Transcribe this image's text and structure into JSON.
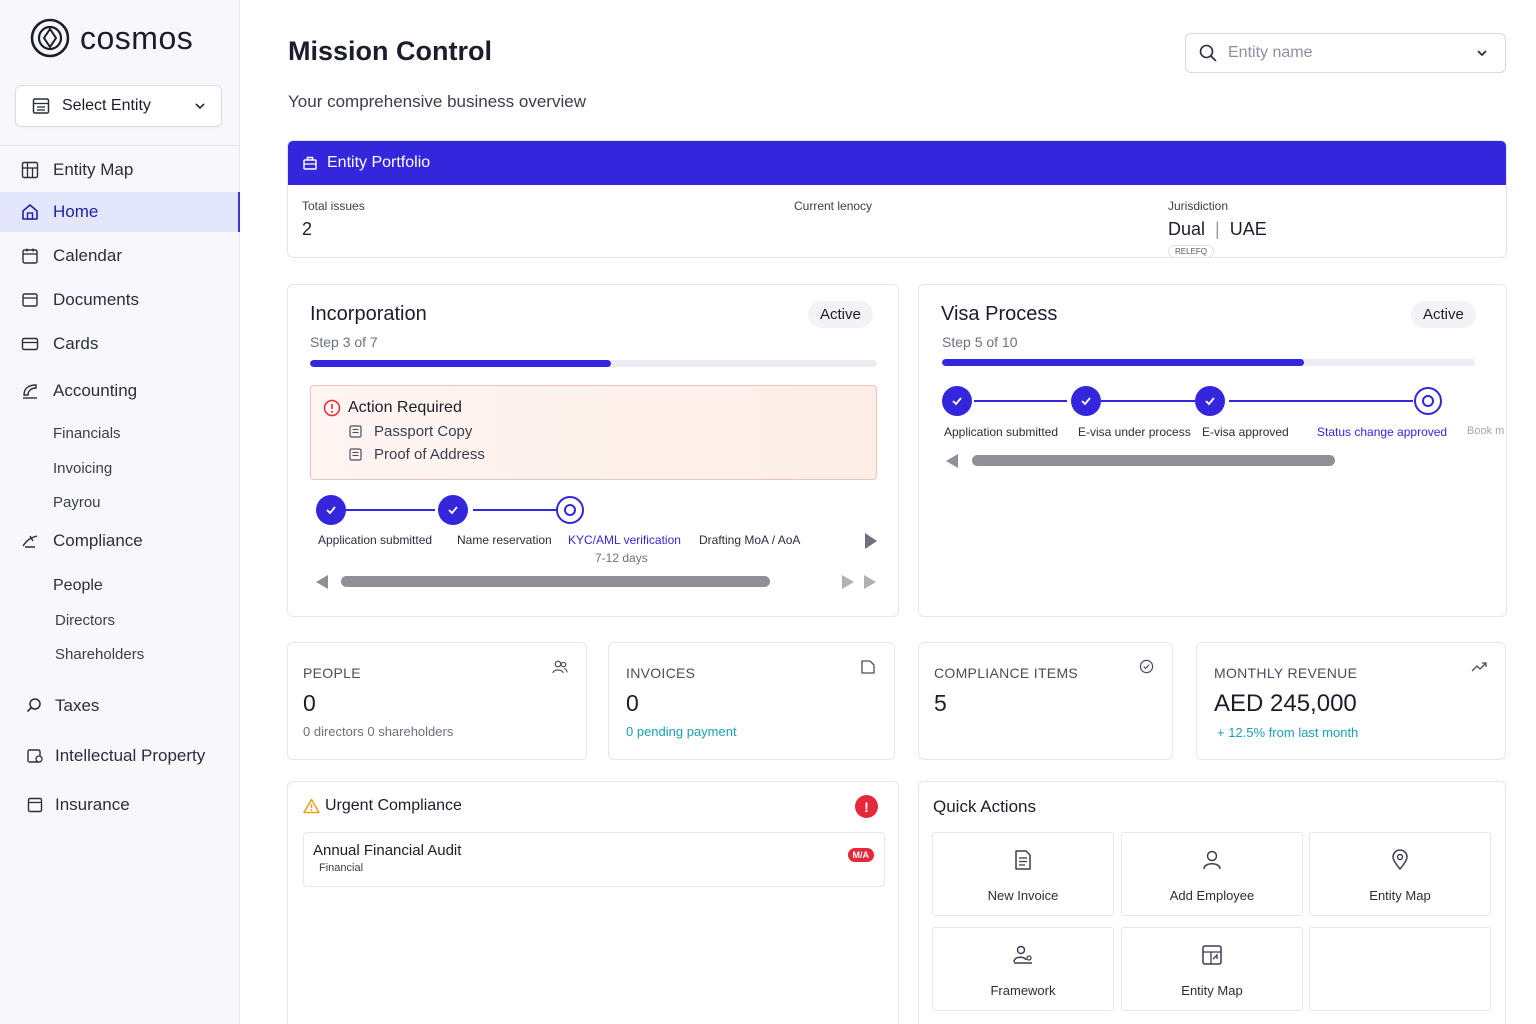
{
  "brand": {
    "name": "cosmos"
  },
  "sidebar": {
    "select_entity": "Select Entity",
    "items": [
      {
        "label": "Entity Map",
        "icon": "grid-icon"
      },
      {
        "label": "Home",
        "icon": "home-icon",
        "active": true
      },
      {
        "label": "Calendar",
        "icon": "calendar-icon"
      },
      {
        "label": "Documents",
        "icon": "folder-icon"
      },
      {
        "label": "Cards",
        "icon": "card-icon"
      },
      {
        "label": "Accounting",
        "icon": "accounting-icon"
      },
      {
        "label": "Compliance",
        "icon": "compliance-icon"
      },
      {
        "label": "Taxes",
        "icon": "search-icon"
      },
      {
        "label": "Intellectual Property",
        "icon": "ip-icon"
      },
      {
        "label": "Insurance",
        "icon": "insurance-icon"
      }
    ],
    "accounting_sub": [
      "Financials",
      "Invoicing",
      "Payrou"
    ],
    "compliance_sub": [
      "People",
      "Directors",
      "Shareholders"
    ]
  },
  "header": {
    "title": "Mission Control",
    "subtitle": "Your comprehensive business overview",
    "search_placeholder": "Entity name"
  },
  "portfolio": {
    "title": "Entity Portfolio",
    "total_issues_label": "Total issues",
    "total_issues_value": "2",
    "current_tenancy_label": "Current lenocy",
    "jurisdiction_label": "Jurisdiction",
    "jurisdiction_value": "Dual",
    "jurisdiction_country": "UAE",
    "jurisdiction_badge": "RELEFQ"
  },
  "incorporation": {
    "title": "Incorporation",
    "status": "Active",
    "step_text": "Step 3 of 7",
    "progress": 0.53,
    "action_title": "Action Required",
    "action_items": [
      "Passport Copy",
      "Proof of Address"
    ],
    "steps": [
      "Application submitted",
      "Name reservation",
      "KYC/AML verification",
      "Drafting MoA / AoA"
    ],
    "current_sub": "7-12 days"
  },
  "visa": {
    "title": "Visa Process",
    "status": "Active",
    "step_text": "Step 5 of 10",
    "progress": 0.68,
    "steps": [
      "Application submitted",
      "E-visa under process",
      "E-visa approved",
      "Status change approved",
      "Book m"
    ]
  },
  "stats": {
    "people": {
      "label": "PEOPLE",
      "value": "0",
      "sub_a": "0 directors",
      "sub_b": "0",
      "sub_c": "shareholders"
    },
    "invoices": {
      "label": "INVOICES",
      "value": "0",
      "sub": "0 pending payment"
    },
    "compliance": {
      "label": "COMPLIANCE ITEMS",
      "value": "5"
    },
    "revenue": {
      "label": "MONTHLY REVENUE",
      "value": "AED 245,000",
      "sub_a": "+ 12.5% from",
      "sub_b": "last month"
    }
  },
  "urgent": {
    "title": "Urgent Compliance",
    "badge": "!",
    "item_title": "Annual Financial Audit",
    "item_sub": "Financial",
    "item_tag": "M/A"
  },
  "quick_actions": {
    "title": "Quick Actions",
    "items": [
      {
        "label": "New Invoice",
        "icon": "document-icon"
      },
      {
        "label": "Add Employee",
        "icon": "user-icon"
      },
      {
        "label": "Entity Map",
        "icon": "map-pin-icon"
      },
      {
        "label": "Framework",
        "icon": "framework-icon"
      },
      {
        "label": "Entity Map",
        "icon": "layout-icon"
      }
    ]
  },
  "colors": {
    "accent": "#3426dd",
    "danger": "#e5293b",
    "teal": "#1a9fb8"
  }
}
